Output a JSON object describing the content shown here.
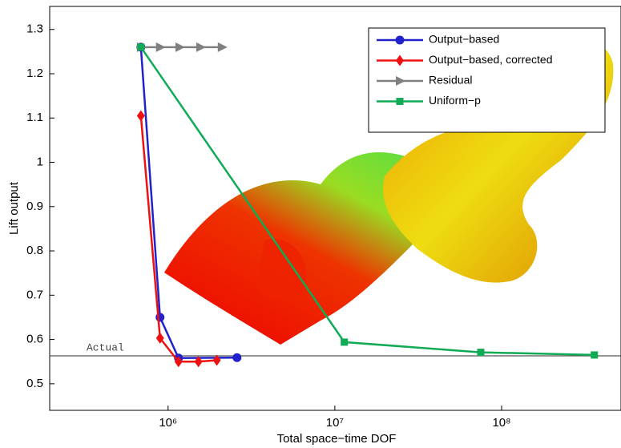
{
  "chart_data": {
    "type": "line",
    "xlabel": "Total space−time DOF",
    "ylabel": "Lift output",
    "xscale": "log",
    "xlim": [
      195000,
      520000000
    ],
    "ylim": [
      0.44,
      1.352
    ],
    "xticks": [
      {
        "value": 1000000,
        "label": "10⁶"
      },
      {
        "value": 10000000,
        "label": "10⁷"
      },
      {
        "value": 100000000,
        "label": "10⁸"
      }
    ],
    "yticks": [
      0.5,
      0.6,
      0.7,
      0.8,
      0.9,
      1,
      1.1,
      1.2,
      1.3
    ],
    "legend": "upper right",
    "series": [
      {
        "name": "Output−based",
        "color": "#2222cc",
        "marker": "circle",
        "x": [
          687000,
          895000,
          1155000,
          2590000
        ],
        "values": [
          1.26,
          0.65,
          0.558,
          0.559
        ]
      },
      {
        "name": "Output−based, corrected",
        "color": "#ee1111",
        "marker": "diamond",
        "x": [
          687000,
          895000,
          1155000,
          1520000,
          1960000
        ],
        "values": [
          1.105,
          0.603,
          0.55,
          0.55,
          0.553
        ]
      },
      {
        "name": "Residual",
        "color": "#808080",
        "marker": "triangle",
        "x": [
          687000,
          895000,
          1170000,
          1560000,
          2100000
        ],
        "values": [
          1.26,
          1.26,
          1.26,
          1.26,
          1.26
        ]
      },
      {
        "name": "Uniform−p",
        "color": "#11aa55",
        "marker": "square",
        "x": [
          687000,
          11400000,
          75000000,
          360000000
        ],
        "values": [
          1.26,
          0.594,
          0.571,
          0.565
        ]
      }
    ],
    "reference": {
      "label": "Actual",
      "value": 0.563,
      "color": "#555555"
    }
  }
}
